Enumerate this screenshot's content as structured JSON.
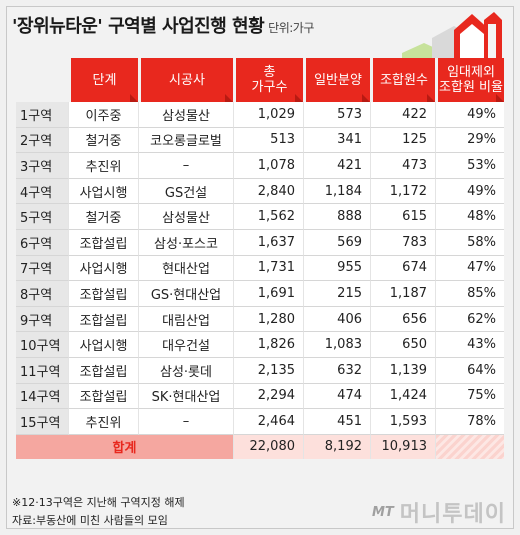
{
  "title": "'장위뉴타운' 구역별 사업진행 현황",
  "unit": "단위:가구",
  "headers": {
    "stage": "단계",
    "builder": "시공사",
    "total_line1": "총",
    "total_line2": "가구수",
    "general": "일반분양",
    "members": "조합원수",
    "ratio_line1": "임대제외",
    "ratio_line2": "조합원 비율"
  },
  "rows": [
    {
      "district": "1구역",
      "stage": "이주중",
      "builder": "삼성물산",
      "total": "1,029",
      "general": "573",
      "members": "422",
      "ratio": "49%"
    },
    {
      "district": "2구역",
      "stage": "철거중",
      "builder": "코오롱글로벌",
      "total": "513",
      "general": "341",
      "members": "125",
      "ratio": "29%"
    },
    {
      "district": "3구역",
      "stage": "추진위",
      "builder": "–",
      "total": "1,078",
      "general": "421",
      "members": "473",
      "ratio": "53%"
    },
    {
      "district": "4구역",
      "stage": "사업시행",
      "builder": "GS건설",
      "total": "2,840",
      "general": "1,184",
      "members": "1,172",
      "ratio": "49%"
    },
    {
      "district": "5구역",
      "stage": "철거중",
      "builder": "삼성물산",
      "total": "1,562",
      "general": "888",
      "members": "615",
      "ratio": "48%"
    },
    {
      "district": "6구역",
      "stage": "조합설립",
      "builder": "삼성·포스코",
      "total": "1,637",
      "general": "569",
      "members": "783",
      "ratio": "58%"
    },
    {
      "district": "7구역",
      "stage": "사업시행",
      "builder": "현대산업",
      "total": "1,731",
      "general": "955",
      "members": "674",
      "ratio": "47%"
    },
    {
      "district": "8구역",
      "stage": "조합설립",
      "builder": "GS·현대산업",
      "total": "1,691",
      "general": "215",
      "members": "1,187",
      "ratio": "85%"
    },
    {
      "district": "9구역",
      "stage": "조합설립",
      "builder": "대림산업",
      "total": "1,280",
      "general": "406",
      "members": "656",
      "ratio": "62%"
    },
    {
      "district": "10구역",
      "stage": "사업시행",
      "builder": "대우건설",
      "total": "1,826",
      "general": "1,083",
      "members": "650",
      "ratio": "43%"
    },
    {
      "district": "11구역",
      "stage": "조합설립",
      "builder": "삼성·롯데",
      "total": "2,135",
      "general": "632",
      "members": "1,139",
      "ratio": "64%"
    },
    {
      "district": "14구역",
      "stage": "조합설립",
      "builder": "SK·현대산업",
      "total": "2,294",
      "general": "474",
      "members": "1,424",
      "ratio": "75%"
    },
    {
      "district": "15구역",
      "stage": "추진위",
      "builder": "–",
      "total": "2,464",
      "general": "451",
      "members": "1,593",
      "ratio": "78%"
    }
  ],
  "total_row": {
    "label": "합계",
    "total": "22,080",
    "general": "8,192",
    "members": "10,913"
  },
  "footnote1": "※12·13구역은 지난해 구역지정 해제",
  "footnote2": "자료:부동산에 미친 사람들의 모임",
  "logo": {
    "mt": "MT",
    "name": "머니투데이"
  },
  "colors": {
    "accent": "#e8281e",
    "total_bg": "#fde0dc",
    "district_bg": "#e7e7e7"
  }
}
